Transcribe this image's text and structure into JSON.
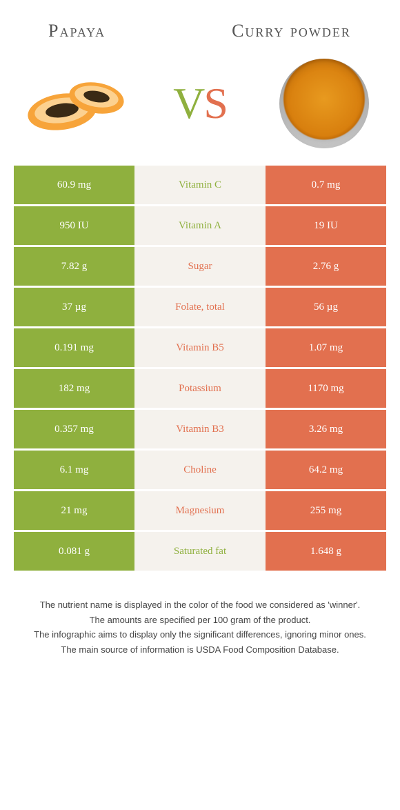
{
  "colors": {
    "green": "#8fb03e",
    "orange": "#e2704f",
    "mid_bg": "#f5f2ed",
    "text": "#555555"
  },
  "left_food": {
    "name": "Papaya"
  },
  "right_food": {
    "name": "Curry powder"
  },
  "vs": {
    "v": "V",
    "s": "S"
  },
  "rows": [
    {
      "nutrient": "Vitamin C",
      "left": "60.9 mg",
      "right": "0.7 mg",
      "winner": "left"
    },
    {
      "nutrient": "Vitamin A",
      "left": "950 IU",
      "right": "19 IU",
      "winner": "left"
    },
    {
      "nutrient": "Sugar",
      "left": "7.82 g",
      "right": "2.76 g",
      "winner": "right"
    },
    {
      "nutrient": "Folate, total",
      "left": "37 µg",
      "right": "56 µg",
      "winner": "right"
    },
    {
      "nutrient": "Vitamin B5",
      "left": "0.191 mg",
      "right": "1.07 mg",
      "winner": "right"
    },
    {
      "nutrient": "Potassium",
      "left": "182 mg",
      "right": "1170 mg",
      "winner": "right"
    },
    {
      "nutrient": "Vitamin B3",
      "left": "0.357 mg",
      "right": "3.26 mg",
      "winner": "right"
    },
    {
      "nutrient": "Choline",
      "left": "6.1 mg",
      "right": "64.2 mg",
      "winner": "right"
    },
    {
      "nutrient": "Magnesium",
      "left": "21 mg",
      "right": "255 mg",
      "winner": "right"
    },
    {
      "nutrient": "Saturated fat",
      "left": "0.081 g",
      "right": "1.648 g",
      "winner": "left"
    }
  ],
  "footer": {
    "line1": "The nutrient name is displayed in the color of the food we considered as 'winner'.",
    "line2": "The amounts are specified per 100 gram of the product.",
    "line3": "The infographic aims to display only the significant differences, ignoring minor ones.",
    "line4": "The main source of information is USDA Food Composition Database."
  }
}
